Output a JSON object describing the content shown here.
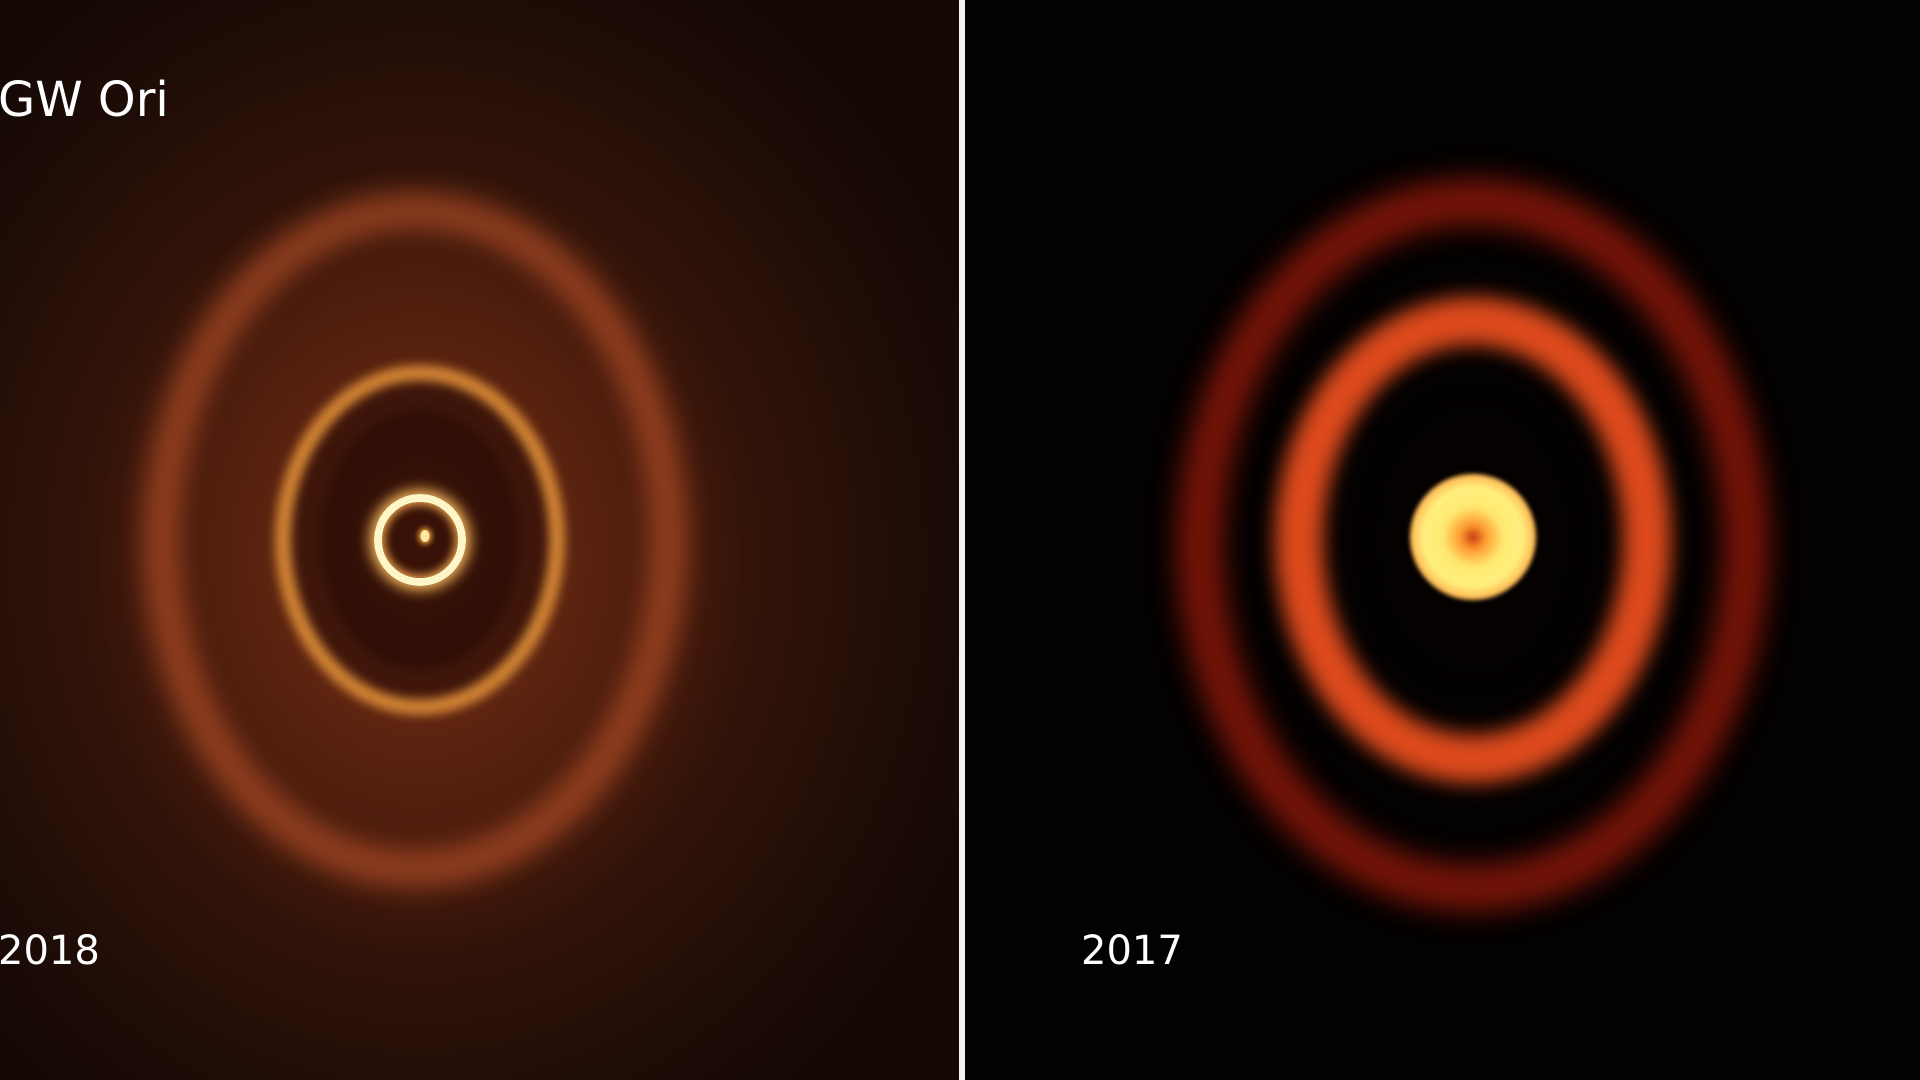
{
  "title": "GW Ori",
  "panels": [
    {
      "year": "2018"
    },
    {
      "year": "2017"
    }
  ],
  "colors": {
    "left_background": "#3a160a",
    "right_background": "#030101",
    "divider": "#f4f4f4"
  }
}
